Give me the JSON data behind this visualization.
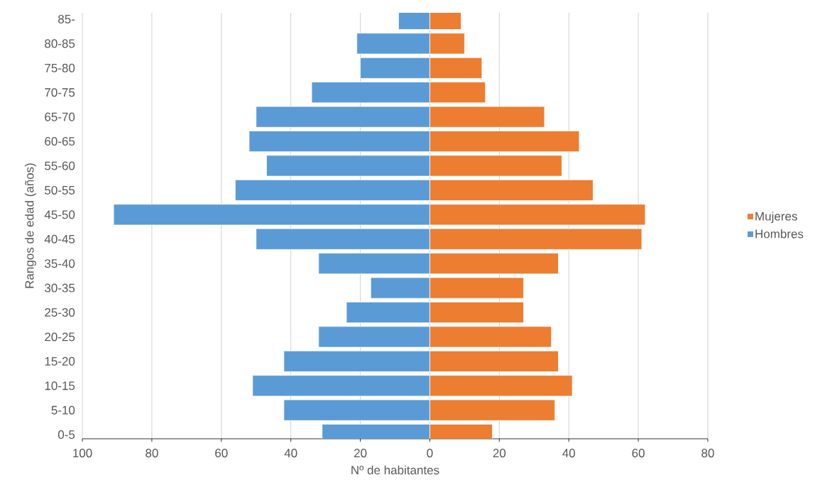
{
  "chart_data": {
    "type": "bar",
    "orientation": "horizontal",
    "stacked": true,
    "xlabel": "Nº de habitantes",
    "ylabel": "Rangos de edad (años)",
    "categories": [
      "85-",
      "80-85",
      "75-80",
      "70-75",
      "65-70",
      "60-65",
      "55-60",
      "50-55",
      "45-50",
      "40-45",
      "35-40",
      "30-35",
      "25-30",
      "20-25",
      "15-20",
      "10-15",
      "5-10",
      "0-5"
    ],
    "series": [
      {
        "name": "Hombres",
        "color": "#5b9bd5",
        "values": [
          -9,
          -21,
          -20,
          -34,
          -50,
          -52,
          -47,
          -56,
          -91,
          -50,
          -32,
          -17,
          -24,
          -32,
          -42,
          -51,
          -42,
          -31
        ]
      },
      {
        "name": "Mujeres",
        "color": "#ed7d31",
        "values": [
          9,
          10,
          15,
          16,
          33,
          43,
          38,
          47,
          62,
          61,
          37,
          27,
          27,
          35,
          37,
          41,
          36,
          18
        ]
      }
    ],
    "xlim": [
      -100,
      80
    ],
    "xticks": [
      {
        "value": -100,
        "label": "100"
      },
      {
        "value": -80,
        "label": "80"
      },
      {
        "value": -60,
        "label": "60"
      },
      {
        "value": -40,
        "label": "40"
      },
      {
        "value": -20,
        "label": "20"
      },
      0,
      20,
      40,
      60,
      80
    ],
    "grid": "x",
    "legend": "right"
  }
}
